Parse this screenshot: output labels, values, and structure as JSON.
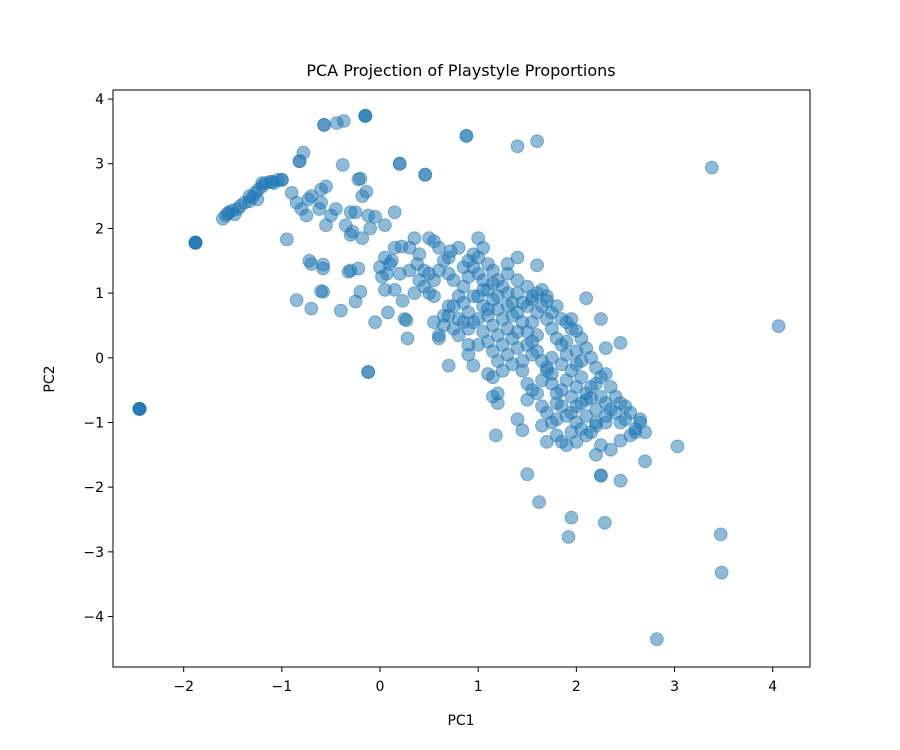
{
  "chart_data": {
    "type": "scatter",
    "title": "PCA Projection of Playstyle Proportions",
    "xlabel": "PC1",
    "ylabel": "PC2",
    "xlim": [
      -2.72,
      4.38
    ],
    "ylim": [
      -4.78,
      4.14
    ],
    "xticks": [
      -2,
      -1,
      0,
      1,
      2,
      3,
      4
    ],
    "yticks": [
      -4,
      -3,
      -2,
      -1,
      0,
      1,
      2,
      3,
      4
    ],
    "xtick_labels": [
      "−2",
      "−1",
      "0",
      "1",
      "2",
      "3",
      "4"
    ],
    "ytick_labels": [
      "−4",
      "−3",
      "−2",
      "−1",
      "0",
      "1",
      "2",
      "3",
      "4"
    ],
    "grid": false,
    "legend": "none",
    "marker_color": "#1f77b4",
    "marker_alpha": 0.5,
    "points": [
      [
        -2.45,
        -0.79
      ],
      [
        -2.45,
        -0.79
      ],
      [
        -2.45,
        -0.79
      ],
      [
        -2.45,
        -0.79
      ],
      [
        -2.45,
        -0.79
      ],
      [
        -2.45,
        -0.79
      ],
      [
        -1.88,
        1.78
      ],
      [
        -1.88,
        1.78
      ],
      [
        -1.88,
        1.78
      ],
      [
        -1.88,
        1.78
      ],
      [
        -1.88,
        1.78
      ],
      [
        -1.6,
        2.15
      ],
      [
        -1.57,
        2.2
      ],
      [
        -1.54,
        2.25
      ],
      [
        -1.5,
        2.28
      ],
      [
        -1.45,
        2.3
      ],
      [
        -1.42,
        2.35
      ],
      [
        -1.38,
        2.4
      ],
      [
        -1.33,
        2.42
      ],
      [
        -1.3,
        2.48
      ],
      [
        -1.27,
        2.55
      ],
      [
        -1.24,
        2.6
      ],
      [
        -1.2,
        2.65
      ],
      [
        -1.17,
        2.7
      ],
      [
        -1.12,
        2.72
      ],
      [
        -1.08,
        2.7
      ],
      [
        -1.04,
        2.75
      ],
      [
        -1.0,
        2.75
      ],
      [
        -1.0,
        2.75
      ],
      [
        -1.25,
        2.45
      ],
      [
        -1.33,
        2.5
      ],
      [
        -1.48,
        2.22
      ],
      [
        -1.55,
        2.23
      ],
      [
        -1.2,
        2.7
      ],
      [
        -1.1,
        2.72
      ],
      [
        -0.82,
        3.04
      ],
      [
        -0.82,
        3.04
      ],
      [
        -0.78,
        3.17
      ],
      [
        -0.57,
        3.6
      ],
      [
        -0.57,
        3.6
      ],
      [
        -0.44,
        3.63
      ],
      [
        -0.37,
        3.66
      ],
      [
        -0.15,
        3.74
      ],
      [
        -0.15,
        3.74
      ],
      [
        -0.15,
        3.74
      ],
      [
        0.88,
        3.43
      ],
      [
        0.88,
        3.43
      ],
      [
        1.4,
        3.27
      ],
      [
        1.6,
        3.35
      ],
      [
        0.2,
        3.0
      ],
      [
        0.2,
        3.0
      ],
      [
        -0.38,
        2.98
      ],
      [
        0.46,
        2.83
      ],
      [
        0.46,
        2.83
      ],
      [
        -0.2,
        2.77
      ],
      [
        -0.22,
        2.76
      ],
      [
        -0.14,
        2.57
      ],
      [
        -0.18,
        2.5
      ],
      [
        -0.6,
        2.6
      ],
      [
        -0.55,
        2.65
      ],
      [
        -0.7,
        2.5
      ],
      [
        -0.73,
        2.45
      ],
      [
        -0.75,
        2.2
      ],
      [
        -0.8,
        2.3
      ],
      [
        -0.85,
        2.4
      ],
      [
        -0.9,
        2.55
      ],
      [
        -0.6,
        2.4
      ],
      [
        -0.62,
        2.3
      ],
      [
        -0.5,
        2.2
      ],
      [
        -0.45,
        2.3
      ],
      [
        -0.3,
        2.25
      ],
      [
        -0.25,
        2.25
      ],
      [
        -0.12,
        2.2
      ],
      [
        -0.05,
        2.18
      ],
      [
        0.05,
        2.05
      ],
      [
        0.15,
        2.25
      ],
      [
        -0.55,
        2.05
      ],
      [
        -0.35,
        2.05
      ],
      [
        -0.3,
        1.9
      ],
      [
        -0.28,
        1.95
      ],
      [
        -0.18,
        1.85
      ],
      [
        -0.1,
        2.0
      ],
      [
        -0.95,
        1.83
      ],
      [
        -0.72,
        1.5
      ],
      [
        -0.7,
        1.45
      ],
      [
        -0.58,
        1.44
      ],
      [
        -0.58,
        1.38
      ],
      [
        -0.58,
        1.02
      ],
      [
        -0.6,
        1.03
      ],
      [
        -0.3,
        1.35
      ],
      [
        -0.32,
        1.33
      ],
      [
        -0.22,
        1.38
      ],
      [
        -0.2,
        1.02
      ],
      [
        -0.25,
        0.87
      ],
      [
        -0.4,
        0.73
      ],
      [
        -0.7,
        0.76
      ],
      [
        -0.85,
        0.89
      ],
      [
        -0.05,
        0.55
      ],
      [
        0.05,
        1.05
      ],
      [
        0.07,
        1.3
      ],
      [
        0.02,
        1.25
      ],
      [
        0.08,
        0.7
      ],
      [
        0.27,
        0.58
      ],
      [
        0.23,
        0.88
      ],
      [
        0.25,
        0.6
      ],
      [
        0.28,
        0.3
      ],
      [
        -0.12,
        -0.22
      ],
      [
        -0.12,
        -0.22
      ],
      [
        0.5,
        1.85
      ],
      [
        0.55,
        1.8
      ],
      [
        0.6,
        1.7
      ],
      [
        0.3,
        1.7
      ],
      [
        0.35,
        1.85
      ],
      [
        0.15,
        1.7
      ],
      [
        0.22,
        1.72
      ],
      [
        0.4,
        1.6
      ],
      [
        0.05,
        1.55
      ],
      [
        0.1,
        1.45
      ],
      [
        0.0,
        1.4
      ],
      [
        0.12,
        1.5
      ],
      [
        0.38,
        1.45
      ],
      [
        0.3,
        1.35
      ],
      [
        0.2,
        1.3
      ],
      [
        0.45,
        1.35
      ],
      [
        0.15,
        1.05
      ],
      [
        0.35,
        1.0
      ],
      [
        0.55,
        1.2
      ],
      [
        0.65,
        1.5
      ],
      [
        0.7,
        1.55
      ],
      [
        0.72,
        1.65
      ],
      [
        0.8,
        1.7
      ],
      [
        0.95,
        1.6
      ],
      [
        1.0,
        1.85
      ],
      [
        1.05,
        1.7
      ],
      [
        1.3,
        1.45
      ],
      [
        1.4,
        1.55
      ],
      [
        1.4,
        1.2
      ],
      [
        1.6,
        1.43
      ],
      [
        1.65,
        1.05
      ],
      [
        1.7,
        0.88
      ],
      [
        1.55,
        0.9
      ],
      [
        2.1,
        0.92
      ],
      [
        2.25,
        0.6
      ],
      [
        2.45,
        0.23
      ],
      [
        2.3,
        0.15
      ],
      [
        2.0,
        0.42
      ],
      [
        1.95,
        0.6
      ],
      [
        1.9,
        0.55
      ],
      [
        0.55,
        0.55
      ],
      [
        0.6,
        0.3
      ],
      [
        0.7,
        0.8
      ],
      [
        0.55,
        0.95
      ],
      [
        0.65,
        0.65
      ],
      [
        0.85,
        0.55
      ],
      [
        0.8,
        0.35
      ],
      [
        0.9,
        0.2
      ],
      [
        1.0,
        0.2
      ],
      [
        0.9,
        0.05
      ],
      [
        0.7,
        -0.12
      ],
      [
        0.95,
        -0.12
      ],
      [
        1.1,
        -0.25
      ],
      [
        1.15,
        -0.3
      ],
      [
        1.2,
        -0.55
      ],
      [
        1.15,
        -0.6
      ],
      [
        1.2,
        -0.7
      ],
      [
        1.45,
        -0.2
      ],
      [
        1.5,
        -0.4
      ],
      [
        1.5,
        -0.65
      ],
      [
        1.55,
        -0.5
      ],
      [
        1.4,
        -0.95
      ],
      [
        1.45,
        -1.12
      ],
      [
        1.18,
        -1.2
      ],
      [
        1.65,
        -0.75
      ],
      [
        1.7,
        -0.85
      ],
      [
        1.75,
        -1.0
      ],
      [
        1.65,
        -1.05
      ],
      [
        1.7,
        -1.3
      ],
      [
        1.8,
        -1.2
      ],
      [
        1.85,
        -1.3
      ],
      [
        1.9,
        -1.35
      ],
      [
        2.0,
        -1.3
      ],
      [
        2.1,
        -1.2
      ],
      [
        2.2,
        -1.05
      ],
      [
        2.3,
        -1.0
      ],
      [
        2.4,
        -0.85
      ],
      [
        2.45,
        -1.0
      ],
      [
        2.5,
        -0.95
      ],
      [
        2.55,
        -0.85
      ],
      [
        2.6,
        -1.1
      ],
      [
        2.65,
        -1.0
      ],
      [
        2.6,
        -1.15
      ],
      [
        2.7,
        -1.15
      ],
      [
        2.65,
        -0.95
      ],
      [
        2.55,
        -1.2
      ],
      [
        2.45,
        -1.28
      ],
      [
        2.35,
        -1.42
      ],
      [
        2.25,
        -1.35
      ],
      [
        2.2,
        -1.5
      ],
      [
        2.25,
        -1.82
      ],
      [
        2.25,
        -1.82
      ],
      [
        2.45,
        -1.9
      ],
      [
        2.7,
        -1.6
      ],
      [
        3.03,
        -1.37
      ],
      [
        1.5,
        -1.8
      ],
      [
        1.62,
        -2.23
      ],
      [
        1.95,
        -2.47
      ],
      [
        1.92,
        -2.77
      ],
      [
        2.29,
        -2.55
      ],
      [
        2.82,
        -4.35
      ],
      [
        3.47,
        -2.73
      ],
      [
        3.48,
        -3.32
      ],
      [
        4.06,
        0.49
      ],
      [
        3.38,
        2.94
      ],
      [
        1.75,
        -0.25
      ],
      [
        1.9,
        -0.35
      ],
      [
        2.0,
        -0.45
      ],
      [
        2.1,
        -0.55
      ],
      [
        2.15,
        -0.62
      ],
      [
        2.05,
        -0.3
      ],
      [
        2.2,
        -0.4
      ],
      [
        2.25,
        -0.6
      ],
      [
        2.3,
        -0.7
      ],
      [
        2.35,
        -0.8
      ],
      [
        2.2,
        -0.8
      ],
      [
        2.1,
        -0.9
      ],
      [
        2.0,
        -0.75
      ],
      [
        1.95,
        -0.6
      ],
      [
        1.85,
        -0.5
      ],
      [
        1.8,
        -0.7
      ],
      [
        1.9,
        -0.9
      ],
      [
        2.0,
        -1.0
      ],
      [
        2.05,
        -1.1
      ],
      [
        2.15,
        -1.15
      ],
      [
        1.95,
        -1.15
      ],
      [
        1.8,
        -0.95
      ],
      [
        1.6,
        -0.55
      ],
      [
        1.65,
        -0.35
      ],
      [
        1.7,
        -0.15
      ],
      [
        1.75,
        0.0
      ],
      [
        1.85,
        -0.1
      ],
      [
        1.95,
        -0.2
      ],
      [
        2.05,
        -0.05
      ],
      [
        2.0,
        0.1
      ],
      [
        1.9,
        0.25
      ],
      [
        1.8,
        0.3
      ],
      [
        1.75,
        0.45
      ],
      [
        1.7,
        0.6
      ],
      [
        1.6,
        0.7
      ],
      [
        1.5,
        0.8
      ],
      [
        1.55,
        0.55
      ],
      [
        1.6,
        0.35
      ],
      [
        1.5,
        0.2
      ],
      [
        1.55,
        0.05
      ],
      [
        1.45,
        -0.05
      ],
      [
        1.4,
        0.15
      ],
      [
        1.35,
        0.3
      ],
      [
        1.3,
        0.45
      ],
      [
        1.25,
        0.6
      ],
      [
        1.2,
        0.75
      ],
      [
        1.15,
        0.9
      ],
      [
        1.1,
        1.05
      ],
      [
        1.05,
        1.2
      ],
      [
        1.0,
        1.3
      ],
      [
        0.95,
        1.4
      ],
      [
        0.9,
        1.25
      ],
      [
        0.85,
        1.1
      ],
      [
        0.8,
        0.95
      ],
      [
        0.75,
        0.8
      ],
      [
        0.7,
        0.65
      ],
      [
        0.65,
        0.5
      ],
      [
        0.6,
        0.35
      ],
      [
        0.5,
        1.0
      ],
      [
        0.45,
        1.1
      ],
      [
        0.4,
        1.2
      ],
      [
        0.5,
        1.3
      ],
      [
        0.6,
        1.35
      ],
      [
        0.7,
        1.3
      ],
      [
        0.75,
        1.2
      ],
      [
        0.85,
        1.4
      ],
      [
        0.9,
        1.5
      ],
      [
        1.0,
        1.55
      ],
      [
        1.1,
        1.45
      ],
      [
        1.15,
        1.35
      ],
      [
        1.2,
        1.2
      ],
      [
        1.25,
        1.1
      ],
      [
        1.3,
        1.0
      ],
      [
        1.35,
        0.85
      ],
      [
        1.4,
        0.7
      ],
      [
        1.45,
        0.55
      ],
      [
        1.5,
        0.4
      ],
      [
        1.55,
        0.25
      ],
      [
        1.6,
        0.1
      ],
      [
        1.65,
        -0.05
      ],
      [
        1.7,
        -0.2
      ],
      [
        1.75,
        -0.4
      ],
      [
        1.8,
        -0.55
      ],
      [
        1.85,
        -0.75
      ],
      [
        1.95,
        -0.85
      ],
      [
        2.05,
        -0.7
      ],
      [
        2.15,
        -0.45
      ],
      [
        2.25,
        -0.3
      ],
      [
        2.35,
        -0.45
      ],
      [
        2.4,
        -0.6
      ],
      [
        2.45,
        -0.7
      ],
      [
        2.5,
        -0.75
      ],
      [
        2.3,
        -0.9
      ],
      [
        2.2,
        -1.0
      ],
      [
        2.1,
        -0.65
      ],
      [
        1.0,
        0.95
      ],
      [
        1.05,
        0.8
      ],
      [
        1.1,
        0.65
      ],
      [
        1.15,
        0.5
      ],
      [
        1.2,
        0.35
      ],
      [
        1.25,
        0.2
      ],
      [
        1.3,
        0.05
      ],
      [
        1.35,
        -0.1
      ],
      [
        1.25,
        -0.2
      ],
      [
        1.2,
        -0.05
      ],
      [
        1.15,
        0.1
      ],
      [
        1.1,
        0.25
      ],
      [
        1.05,
        0.4
      ],
      [
        0.95,
        0.55
      ],
      [
        0.9,
        0.7
      ],
      [
        0.85,
        0.85
      ],
      [
        0.95,
        0.95
      ],
      [
        1.05,
        1.05
      ],
      [
        1.15,
        1.15
      ],
      [
        1.3,
        1.3
      ],
      [
        1.4,
        1.0
      ],
      [
        1.5,
        1.1
      ],
      [
        1.6,
        1.0
      ],
      [
        1.7,
        0.95
      ],
      [
        1.8,
        0.8
      ],
      [
        1.85,
        0.6
      ],
      [
        1.95,
        0.45
      ],
      [
        2.05,
        0.3
      ],
      [
        2.1,
        0.15
      ],
      [
        2.15,
        0.0
      ],
      [
        2.2,
        -0.15
      ],
      [
        2.3,
        -0.25
      ],
      [
        1.35,
        0.65
      ],
      [
        1.45,
        0.85
      ],
      [
        1.55,
        0.95
      ],
      [
        1.65,
        0.8
      ],
      [
        1.75,
        0.7
      ],
      [
        1.85,
        0.2
      ],
      [
        1.9,
        0.05
      ],
      [
        2.0,
        -0.1
      ],
      [
        1.4,
        0.4
      ],
      [
        1.3,
        0.8
      ],
      [
        1.2,
        0.95
      ],
      [
        1.1,
        0.75
      ],
      [
        1.0,
        0.6
      ],
      [
        0.9,
        0.45
      ],
      [
        0.8,
        0.6
      ],
      [
        0.75,
        0.45
      ]
    ]
  }
}
